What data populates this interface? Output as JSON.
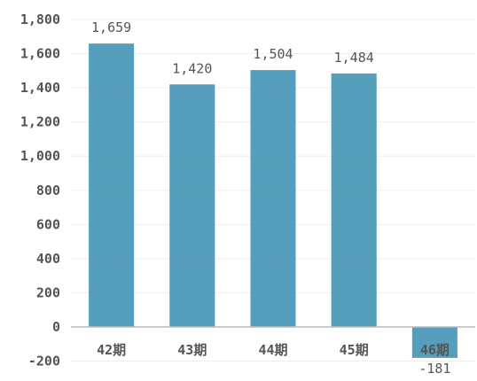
{
  "chart_data": {
    "type": "bar",
    "title": "",
    "xlabel": "",
    "ylabel": "",
    "categories": [
      "42期",
      "43期",
      "44期",
      "45期",
      "46期"
    ],
    "values": [
      1659,
      1420,
      1504,
      1484,
      -181
    ],
    "value_labels": [
      "1,659",
      "1,420",
      "1,504",
      "1,484",
      "-181"
    ],
    "ylim": [
      -200,
      1800
    ],
    "yticks": [
      -200,
      0,
      200,
      400,
      600,
      800,
      1000,
      1200,
      1400,
      1600,
      1800
    ],
    "ytick_labels": [
      "-200",
      "0",
      "200",
      "400",
      "600",
      "800",
      "1,000",
      "1,200",
      "1,400",
      "1,600",
      "1,800"
    ],
    "grid": true,
    "bar_color": "#3f92b3",
    "legend": "none"
  }
}
